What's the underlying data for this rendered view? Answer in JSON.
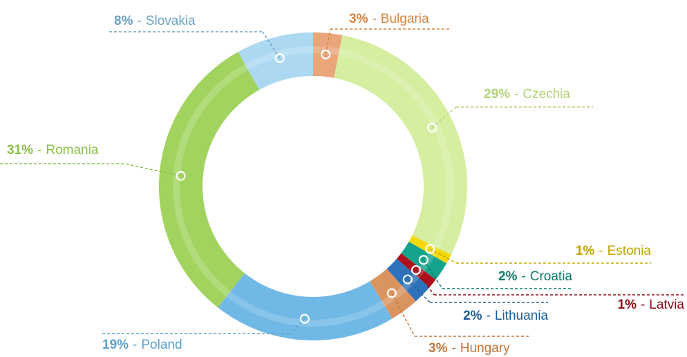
{
  "chart_data": {
    "type": "donut",
    "categories": [
      "Bulgaria",
      "Czechia",
      "Estonia",
      "Croatia",
      "Latvia",
      "Lithuania",
      "Hungary",
      "Poland",
      "Romania",
      "Slovakia"
    ],
    "values": [
      3,
      29,
      1,
      2,
      1,
      2,
      3,
      19,
      31,
      8
    ],
    "value_labels": [
      "3%",
      "29%",
      "1%",
      "2%",
      "1%",
      "2%",
      "3%",
      "19%",
      "31%",
      "8%"
    ],
    "label_separator": "-",
    "colors": [
      "#eba57b",
      "#d5eea0",
      "#f4d90a",
      "#14a38c",
      "#b0101c",
      "#2d72ba",
      "#da9460",
      "#70b8e6",
      "#a2d35e",
      "#acd8f2"
    ],
    "label_colors": [
      "#d9833f",
      "#b3d178",
      "#c2a600",
      "#0e7c6a",
      "#8b0a14",
      "#1f5d96",
      "#c2743a",
      "#5ba2cf",
      "#8cc04a",
      "#6aa3c4"
    ]
  }
}
